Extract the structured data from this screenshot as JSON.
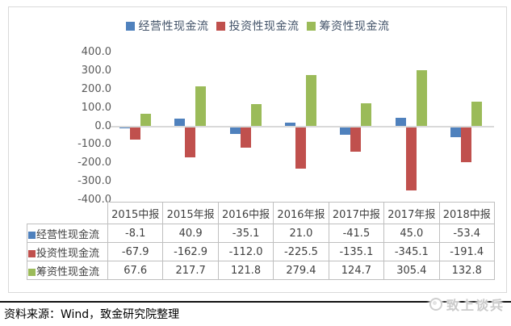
{
  "chart_data": {
    "type": "bar",
    "title": "",
    "categories": [
      "2015中报",
      "2015年报",
      "2016中报",
      "2016年报",
      "2017中报",
      "2017年报",
      "2018中报"
    ],
    "series": [
      {
        "name": "经营性现金流",
        "color": "#4F81BD",
        "values": [
          -8.1,
          40.9,
          -35.1,
          21.0,
          -41.5,
          45.0,
          -53.4
        ]
      },
      {
        "name": "投资性现金流",
        "color": "#C0504D",
        "values": [
          -67.9,
          -162.9,
          -112.0,
          -225.5,
          -135.1,
          -345.1,
          -191.4
        ]
      },
      {
        "name": "筹资性现金流",
        "color": "#9BBB59",
        "values": [
          67.6,
          217.7,
          121.8,
          279.4,
          124.7,
          305.4,
          132.8
        ]
      }
    ],
    "ylim": [
      -400,
      400
    ],
    "ytick_step": 100,
    "ytick_decimals": 1,
    "value_decimals": 1,
    "grid": false,
    "legend_position": "top",
    "data_table_shown": true,
    "axis_line_color": "#d9d9d9"
  },
  "footer": {
    "source_text": "资料来源：Wind，致金研究院整理"
  },
  "watermark": {
    "text": "致上谈兵",
    "icon": "circle-logo-icon"
  }
}
